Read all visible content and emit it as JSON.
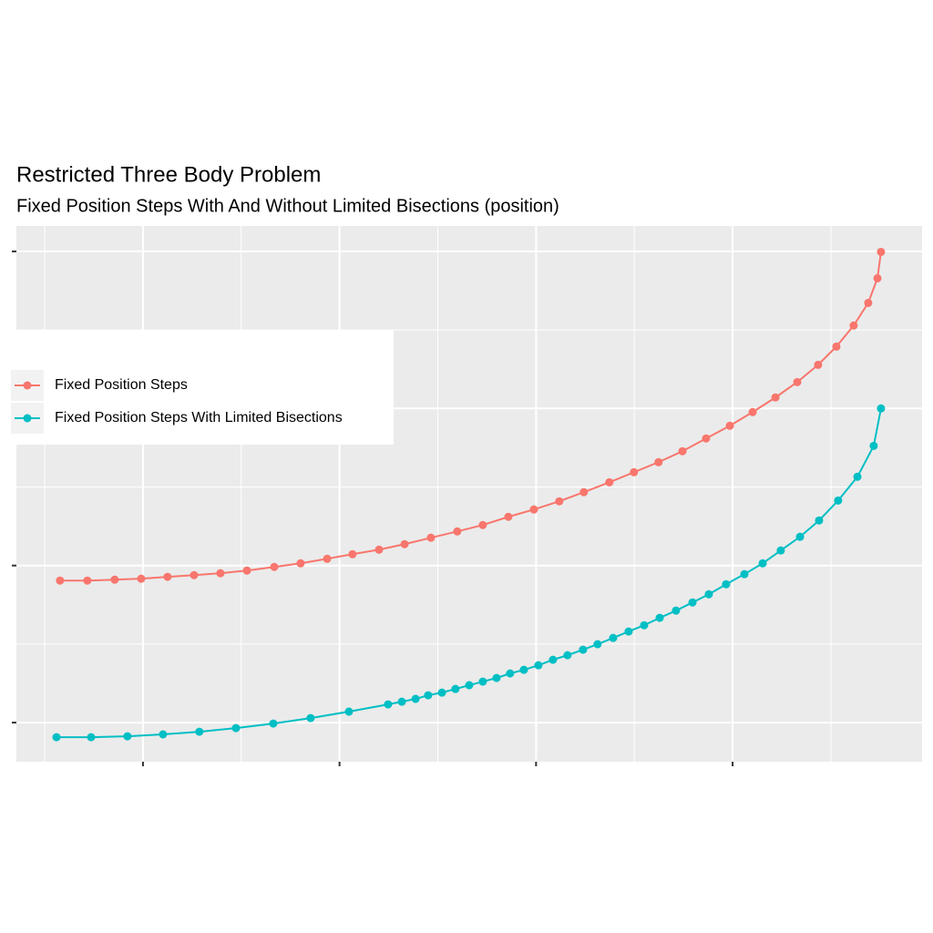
{
  "chart_data": {
    "type": "line",
    "title": "Restricted Three Body Problem",
    "subtitle": "Fixed Position Steps With And Without Limited Bisections (position)",
    "xlim": [
      0.356,
      4.964
    ],
    "xticks": [
      1,
      2,
      3,
      4
    ],
    "xminorticks": [
      0.5,
      1.5,
      2.5,
      3.5,
      4.5
    ],
    "ylim": [
      -0.249,
      3.162
    ],
    "yticks": [
      0,
      1,
      2,
      3
    ],
    "yminorticks": [
      0.5,
      1.5,
      2.5
    ],
    "grid": true,
    "legend": "left",
    "series": [
      {
        "name": "Fixed Position Steps",
        "color": "#f8766d",
        "x": [
          0.578,
          0.717,
          0.856,
          0.991,
          1.125,
          1.26,
          1.394,
          1.529,
          1.668,
          1.802,
          1.937,
          2.066,
          2.201,
          2.331,
          2.465,
          2.599,
          2.729,
          2.859,
          2.989,
          3.118,
          3.243,
          3.373,
          3.498,
          3.623,
          3.745,
          3.865,
          3.986,
          4.102,
          4.218,
          4.329,
          4.435,
          4.528,
          4.616,
          4.69,
          4.737,
          4.755
        ],
        "values": [
          0.904,
          0.904,
          0.91,
          0.916,
          0.928,
          0.939,
          0.951,
          0.968,
          0.991,
          1.014,
          1.043,
          1.072,
          1.101,
          1.136,
          1.177,
          1.217,
          1.258,
          1.31,
          1.357,
          1.409,
          1.467,
          1.53,
          1.594,
          1.658,
          1.728,
          1.809,
          1.89,
          1.977,
          2.07,
          2.168,
          2.278,
          2.394,
          2.528,
          2.672,
          2.829,
          2.997
        ]
      },
      {
        "name": "Fixed Position Steps With Limited Bisections",
        "color": "#00bfc4",
        "x": [
          0.56,
          0.736,
          0.921,
          1.102,
          1.287,
          1.473,
          1.663,
          1.853,
          2.048,
          2.247,
          2.317,
          2.387,
          2.451,
          2.521,
          2.59,
          2.66,
          2.729,
          2.799,
          2.868,
          2.938,
          3.012,
          3.086,
          3.16,
          3.239,
          3.313,
          3.392,
          3.471,
          3.55,
          3.629,
          3.712,
          3.796,
          3.879,
          3.967,
          4.06,
          4.153,
          4.245,
          4.343,
          4.44,
          4.537,
          4.635,
          4.718,
          4.755
        ],
        "values": [
          -0.093,
          -0.093,
          -0.087,
          -0.075,
          -0.058,
          -0.035,
          -0.006,
          0.029,
          0.07,
          0.116,
          0.133,
          0.151,
          0.174,
          0.191,
          0.214,
          0.238,
          0.261,
          0.284,
          0.313,
          0.336,
          0.365,
          0.4,
          0.429,
          0.464,
          0.499,
          0.539,
          0.58,
          0.62,
          0.667,
          0.713,
          0.765,
          0.817,
          0.881,
          0.945,
          1.014,
          1.096,
          1.183,
          1.287,
          1.414,
          1.565,
          1.762,
          2.0
        ]
      }
    ]
  }
}
